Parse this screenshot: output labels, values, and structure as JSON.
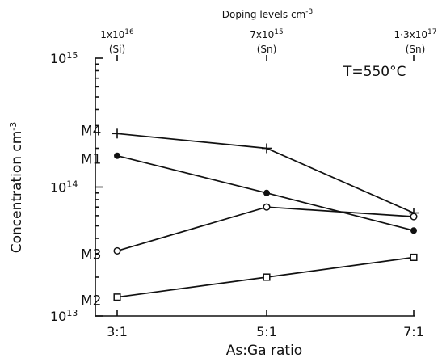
{
  "chart_data": {
    "type": "line",
    "x_label": "As:Ga ratio",
    "y_label": "Concentration cm",
    "y_label_sup": "-3",
    "y_scale": "log",
    "y_range": [
      10000000000000.0,
      1000000000000000.0
    ],
    "categories": [
      "3:1",
      "5:1",
      "7:1"
    ],
    "y_ticks": [
      {
        "value": 10000000000000.0,
        "base": "10",
        "exp": "13"
      },
      {
        "value": 100000000000000.0,
        "base": "10",
        "exp": "14"
      },
      {
        "value": 1000000000000000.0,
        "base": "10",
        "exp": "15"
      }
    ],
    "top_axis_title": "Doping levels cm",
    "top_axis_title_sup": "-3",
    "top_labels": [
      {
        "value": "1x10",
        "exp": "16",
        "dopant": "(Si)"
      },
      {
        "value": "7x10",
        "exp": "15",
        "dopant": "(Sn)"
      },
      {
        "value": "1·3x10",
        "exp": "17",
        "dopant": "(Sn)"
      }
    ],
    "annotation": "T=550°C",
    "series": [
      {
        "name": "M4",
        "marker": "plus",
        "values": [
          260000000000000.0,
          200000000000000.0,
          63000000000000.0
        ]
      },
      {
        "name": "M1",
        "marker": "filled-circle",
        "values": [
          175000000000000.0,
          90000000000000.0,
          46000000000000.0
        ]
      },
      {
        "name": "M3",
        "marker": "open-circle",
        "values": [
          32000000000000.0,
          70000000000000.0,
          59000000000000.0
        ]
      },
      {
        "name": "M2",
        "marker": "open-square",
        "values": [
          14000000000000.0,
          20000000000000.0,
          28500000000000.0
        ]
      }
    ]
  }
}
